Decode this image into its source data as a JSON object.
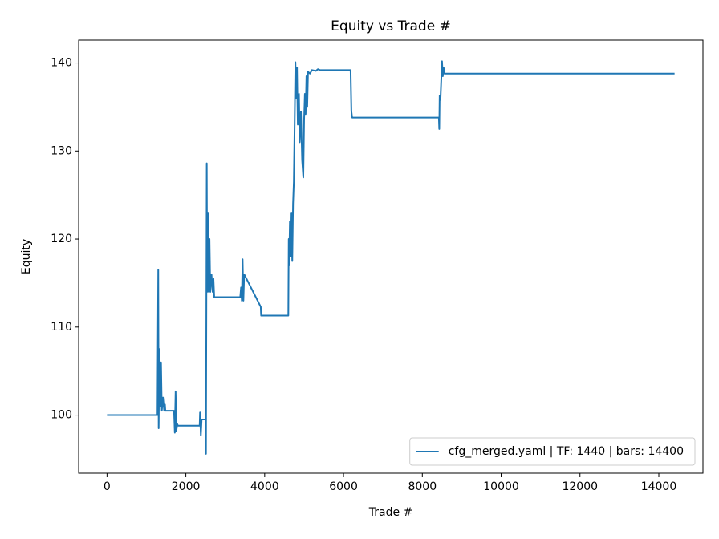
{
  "chart_data": {
    "type": "line",
    "title": "Equity vs Trade #",
    "x_label": "Trade #",
    "y_label": "Equity",
    "legend_position": "lower right",
    "xlim": [
      -720,
      15120
    ],
    "ylim": [
      93.4,
      142.6
    ],
    "xticks": [
      0,
      2000,
      4000,
      6000,
      8000,
      10000,
      12000,
      14000
    ],
    "yticks": [
      100,
      110,
      120,
      130,
      140
    ],
    "series": [
      {
        "name": "cfg_merged.yaml | TF: 1440 | bars: 14400",
        "color": "#1f77b4",
        "x": [
          0,
          1280,
          1300,
          1310,
          1330,
          1350,
          1370,
          1390,
          1420,
          1450,
          1470,
          1480,
          1700,
          1720,
          1740,
          1760,
          1780,
          1800,
          2350,
          2360,
          2380,
          2400,
          2500,
          2510,
          2530,
          2540,
          2560,
          2580,
          2600,
          2620,
          2650,
          2680,
          2700,
          2720,
          3380,
          3400,
          3420,
          3440,
          3460,
          3480,
          3900,
          3910,
          4600,
          4610,
          4620,
          4640,
          4660,
          4680,
          4700,
          4720,
          4740,
          4760,
          4780,
          4800,
          4820,
          4840,
          4870,
          4890,
          4920,
          4950,
          4980,
          5000,
          5020,
          5040,
          5060,
          5080,
          5100,
          5150,
          5200,
          5300,
          5350,
          5400,
          6180,
          6200,
          6220,
          8420,
          8430,
          8440,
          8460,
          8500,
          8520,
          8540,
          8560,
          14400
        ],
        "values": [
          100,
          100,
          116.5,
          98.5,
          107.5,
          101,
          106,
          100.5,
          102,
          100.5,
          101.2,
          100.5,
          100.5,
          98,
          102.7,
          98.2,
          99,
          98.8,
          98.8,
          100.3,
          97.7,
          99.5,
          99.5,
          95.6,
          128.6,
          114,
          123,
          114,
          120,
          114,
          116,
          114,
          115.5,
          113.4,
          113.4,
          114.5,
          113,
          117.7,
          113,
          116,
          112.3,
          111.3,
          111.3,
          120,
          117,
          122,
          118,
          123,
          117.5,
          124,
          126.5,
          133,
          140.1,
          136,
          139.5,
          133,
          136.5,
          131,
          134.5,
          129,
          127,
          133.5,
          136.5,
          134.2,
          138.5,
          135,
          139,
          138.8,
          139.2,
          139.1,
          139.3,
          139.2,
          139.2,
          134.5,
          133.8,
          133.8,
          132.5,
          136.3,
          135.8,
          140.2,
          138.5,
          139.5,
          138.8,
          138.8
        ]
      }
    ]
  }
}
